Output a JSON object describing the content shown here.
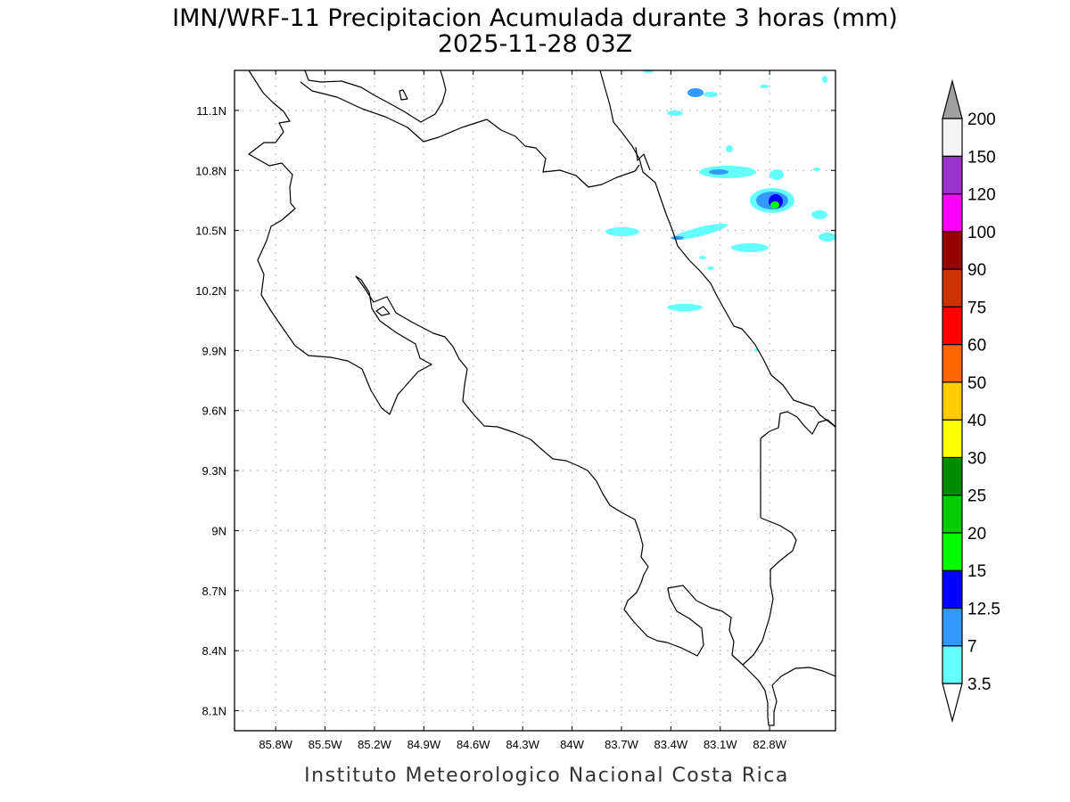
{
  "header": {
    "title_line1": "IMN/WRF-11 Precipitacion Acumulada durante 3 horas (mm)",
    "title_line2": "2025-11-28 03Z"
  },
  "footer": {
    "credit": "Instituto Meteorologico Nacional Costa Rica"
  },
  "map": {
    "lon_range": [
      -86.05,
      -82.4
    ],
    "lat_range": [
      8.0,
      11.3
    ],
    "lon_ticks": [
      {
        "value": -85.8,
        "label": "85.8W"
      },
      {
        "value": -85.5,
        "label": "85.5W"
      },
      {
        "value": -85.2,
        "label": "85.2W"
      },
      {
        "value": -84.9,
        "label": "84.9W"
      },
      {
        "value": -84.6,
        "label": "84.6W"
      },
      {
        "value": -84.3,
        "label": "84.3W"
      },
      {
        "value": -84.0,
        "label": "84W"
      },
      {
        "value": -83.7,
        "label": "83.7W"
      },
      {
        "value": -83.4,
        "label": "83.4W"
      },
      {
        "value": -83.1,
        "label": "83.1W"
      },
      {
        "value": -82.8,
        "label": "82.8W"
      }
    ],
    "lat_ticks": [
      {
        "value": 11.1,
        "label": "11.1N"
      },
      {
        "value": 10.8,
        "label": "10.8N"
      },
      {
        "value": 10.5,
        "label": "10.5N"
      },
      {
        "value": 10.2,
        "label": "10.2N"
      },
      {
        "value": 9.9,
        "label": "9.9N"
      },
      {
        "value": 9.6,
        "label": "9.6N"
      },
      {
        "value": 9.3,
        "label": "9.3N"
      },
      {
        "value": 9.0,
        "label": "9N"
      },
      {
        "value": 8.7,
        "label": "8.7N"
      },
      {
        "value": 8.4,
        "label": "8.4N"
      },
      {
        "value": 8.1,
        "label": "8.1N"
      }
    ],
    "grid": true
  },
  "colorbar": {
    "bins": [
      {
        "label": "3.5",
        "color": "#66ffff"
      },
      {
        "label": "7",
        "color": "#3399ff"
      },
      {
        "label": "12.5",
        "color": "#0000ff"
      },
      {
        "label": "15",
        "color": "#00ff00"
      },
      {
        "label": "20",
        "color": "#00cc00"
      },
      {
        "label": "25",
        "color": "#008c00"
      },
      {
        "label": "30",
        "color": "#ffff00"
      },
      {
        "label": "40",
        "color": "#ffcc00"
      },
      {
        "label": "50",
        "color": "#ff6600"
      },
      {
        "label": "60",
        "color": "#ff0000"
      },
      {
        "label": "75",
        "color": "#cc3300"
      },
      {
        "label": "90",
        "color": "#990000"
      },
      {
        "label": "100",
        "color": "#ff00ff"
      },
      {
        "label": "120",
        "color": "#9933cc"
      },
      {
        "label": "150",
        "color": "#f5f5f5"
      },
      {
        "label": "200",
        "color": "#a0a0a0"
      }
    ],
    "under_color": "#ffffff",
    "over_color": "#a0a0a0"
  }
}
